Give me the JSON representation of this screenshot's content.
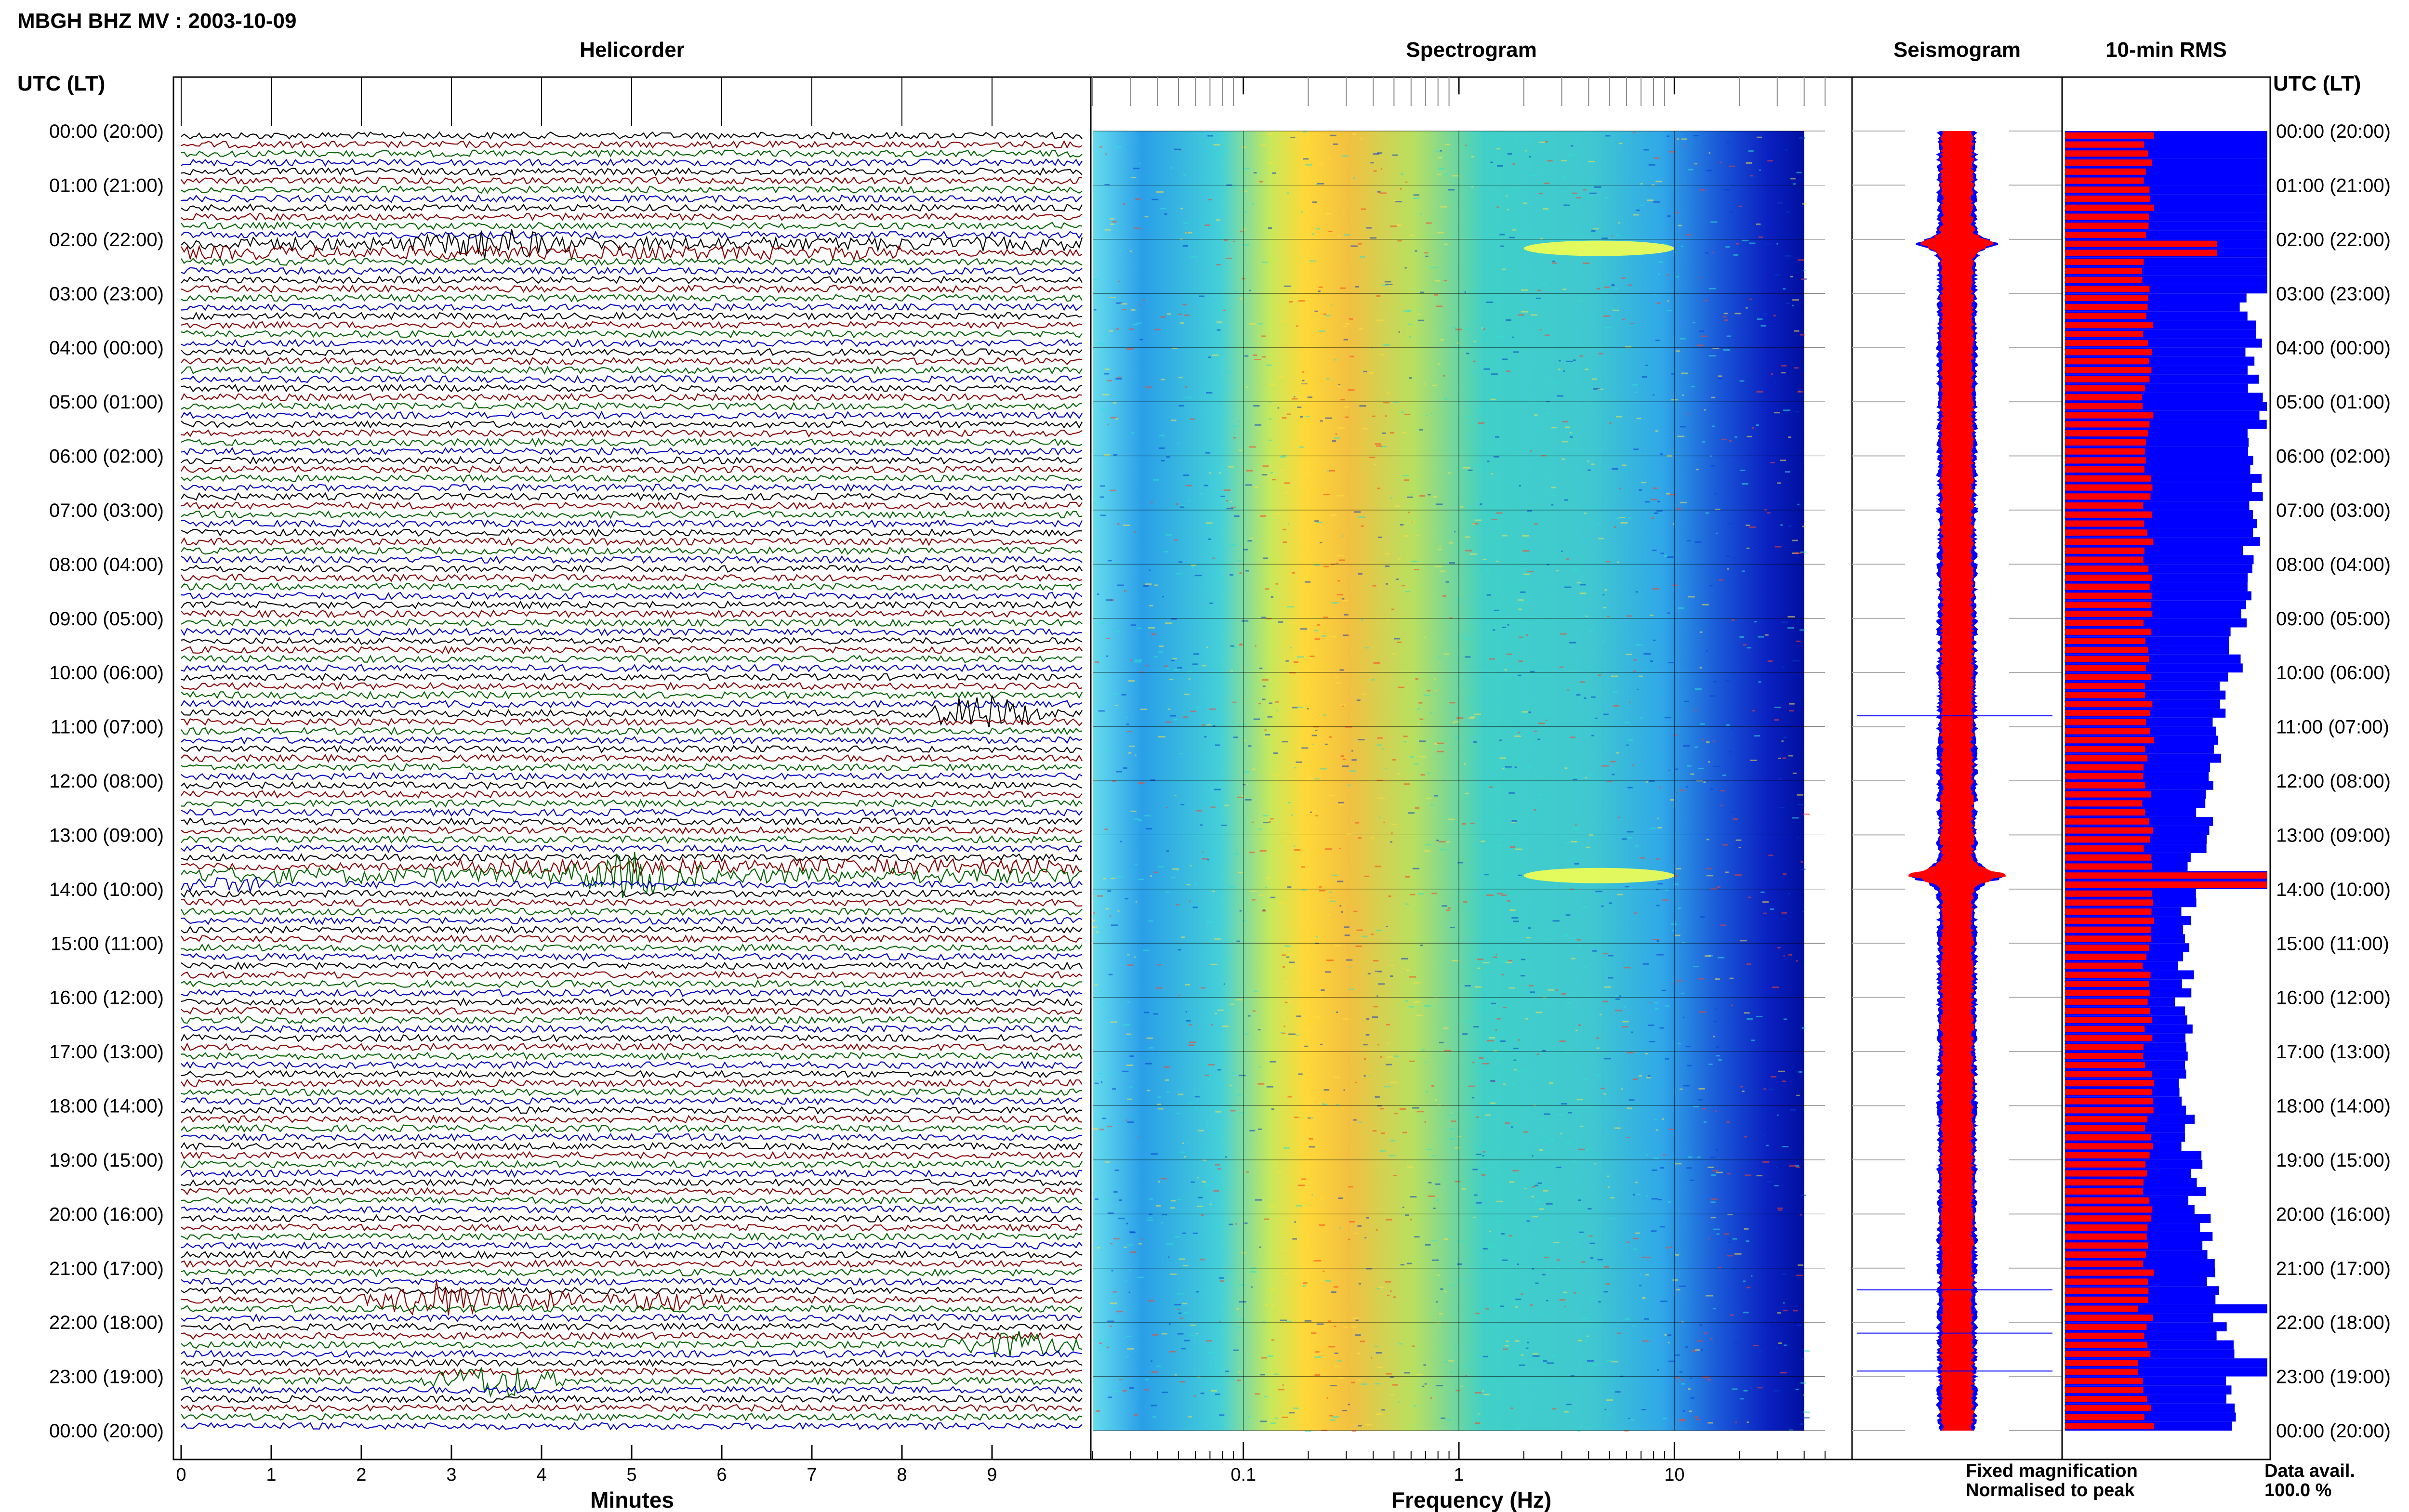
{
  "figure_title": "MBGH BHZ MV : 2003-10-09",
  "time_axis_label": "UTC (LT)",
  "colors": {
    "helicorder_traces": [
      "#000000",
      "#8b0000",
      "#006400",
      "#0000cd"
    ],
    "fixed_magnification": "#0000ff",
    "normalised_to_peak": "#ff0000"
  },
  "chart_data": [
    {
      "type": "line",
      "title": "Helicorder",
      "xlabel": "Minutes",
      "ylabel": "UTC (LT)",
      "x_ticks": [
        "0",
        "1",
        "2",
        "3",
        "4",
        "5",
        "6",
        "7",
        "8",
        "9"
      ],
      "xlim": [
        0,
        10
      ],
      "rows_per_day": 144,
      "row_minutes": 10,
      "events": [
        {
          "time": "02:00",
          "minute": 3.5,
          "amp": 2
        },
        {
          "time": "10:40",
          "minute": 8.9,
          "amp": 3
        },
        {
          "time": "13:40",
          "minute": 5.0,
          "amp": 3
        },
        {
          "time": "21:30",
          "minute": 2.8,
          "amp": 3
        },
        {
          "time": "21:30",
          "minute": 3.8,
          "amp": 1.5
        },
        {
          "time": "21:30",
          "minute": 5.4,
          "amp": 1.5
        },
        {
          "time": "22:20",
          "minute": 9.2,
          "amp": 2
        },
        {
          "time": "23:00",
          "minute": 3.5,
          "amp": 3
        }
      ]
    },
    {
      "type": "heatmap",
      "title": "Spectrogram",
      "xlabel": "Frequency (Hz)",
      "x_scale": "log",
      "x_ticks": [
        "0.1",
        "1",
        "10"
      ],
      "xlim": [
        0.02,
        50
      ],
      "bright_bands": [
        {
          "time": "02:10",
          "freq_hz": [
            2,
            10
          ]
        },
        {
          "time": "13:45",
          "freq_hz": [
            2,
            10
          ]
        }
      ]
    },
    {
      "type": "area",
      "title": "Seismogram",
      "series": [
        {
          "name": "Fixed magnification",
          "color": "#0000ff"
        },
        {
          "name": "Normalised to peak",
          "color": "#ff0000"
        }
      ],
      "peaks": [
        {
          "time": "02:05",
          "width_fraction": 0.45
        },
        {
          "time": "13:45",
          "width_fraction": 0.75
        }
      ]
    },
    {
      "type": "bar",
      "title": "10-min RMS",
      "orientation": "horizontal",
      "rows": 144,
      "series": [
        {
          "name": "Fixed magnification",
          "color": "#0000ff"
        },
        {
          "name": "Normalised to peak",
          "color": "#ff0000"
        }
      ]
    }
  ],
  "time_labels": [
    "00:00 (20:00)",
    "01:00 (21:00)",
    "02:00 (22:00)",
    "03:00 (23:00)",
    "04:00 (00:00)",
    "05:00 (01:00)",
    "06:00 (02:00)",
    "07:00 (03:00)",
    "08:00 (04:00)",
    "09:00 (05:00)",
    "10:00 (06:00)",
    "11:00 (07:00)",
    "12:00 (08:00)",
    "13:00 (09:00)",
    "14:00 (10:00)",
    "15:00 (11:00)",
    "16:00 (12:00)",
    "17:00 (13:00)",
    "18:00 (14:00)",
    "19:00 (15:00)",
    "20:00 (16:00)",
    "21:00 (17:00)",
    "22:00 (18:00)",
    "23:00 (19:00)",
    "00:00 (20:00)"
  ],
  "legend": {
    "fixed": "Fixed magnification",
    "normalised": "Normalised to peak"
  },
  "data_avail": {
    "label": "Data avail.",
    "value": "100.0 %"
  }
}
